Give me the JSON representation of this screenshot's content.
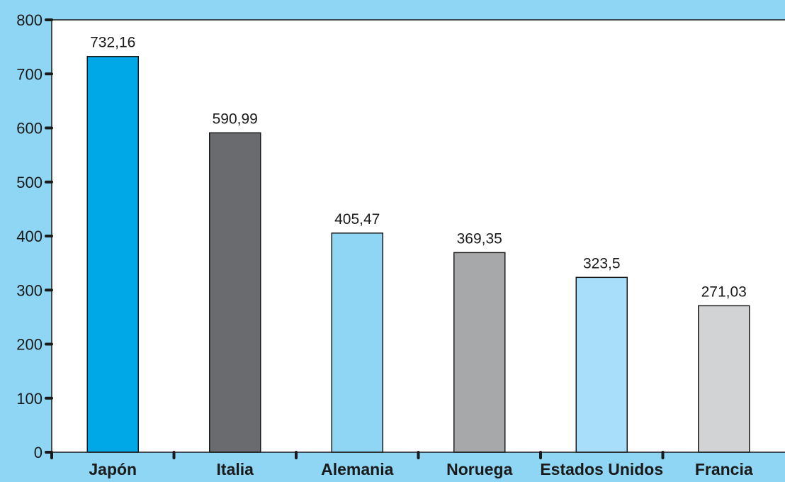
{
  "chart_data": {
    "type": "bar",
    "title": "",
    "xlabel": "",
    "ylabel": "",
    "categories": [
      "Japón",
      "Italia",
      "Alemania",
      "Noruega",
      "Estados Unidos",
      "Francia"
    ],
    "values": [
      732.16,
      590.99,
      405.47,
      369.35,
      323.5,
      271.03
    ],
    "value_labels": [
      "732,16",
      "590,99",
      "405,47",
      "369,35",
      "323,5",
      "271,03"
    ],
    "bar_colors": [
      "#00a8e8",
      "#6a6b6e",
      "#8fd6f4",
      "#a7a8aa",
      "#a8defa",
      "#d2d3d5"
    ],
    "ylim": [
      0,
      800
    ],
    "yticks": [
      0,
      100,
      200,
      300,
      400,
      500,
      600,
      700,
      800
    ],
    "ytick_labels": [
      "0",
      "100",
      "200",
      "300",
      "400",
      "500",
      "600",
      "700",
      "800"
    ],
    "grid": false,
    "legend": "none",
    "colors": {
      "background": "#8fd6f4",
      "plot_area": "#ffffff",
      "axis": "#1a1a1a"
    }
  }
}
